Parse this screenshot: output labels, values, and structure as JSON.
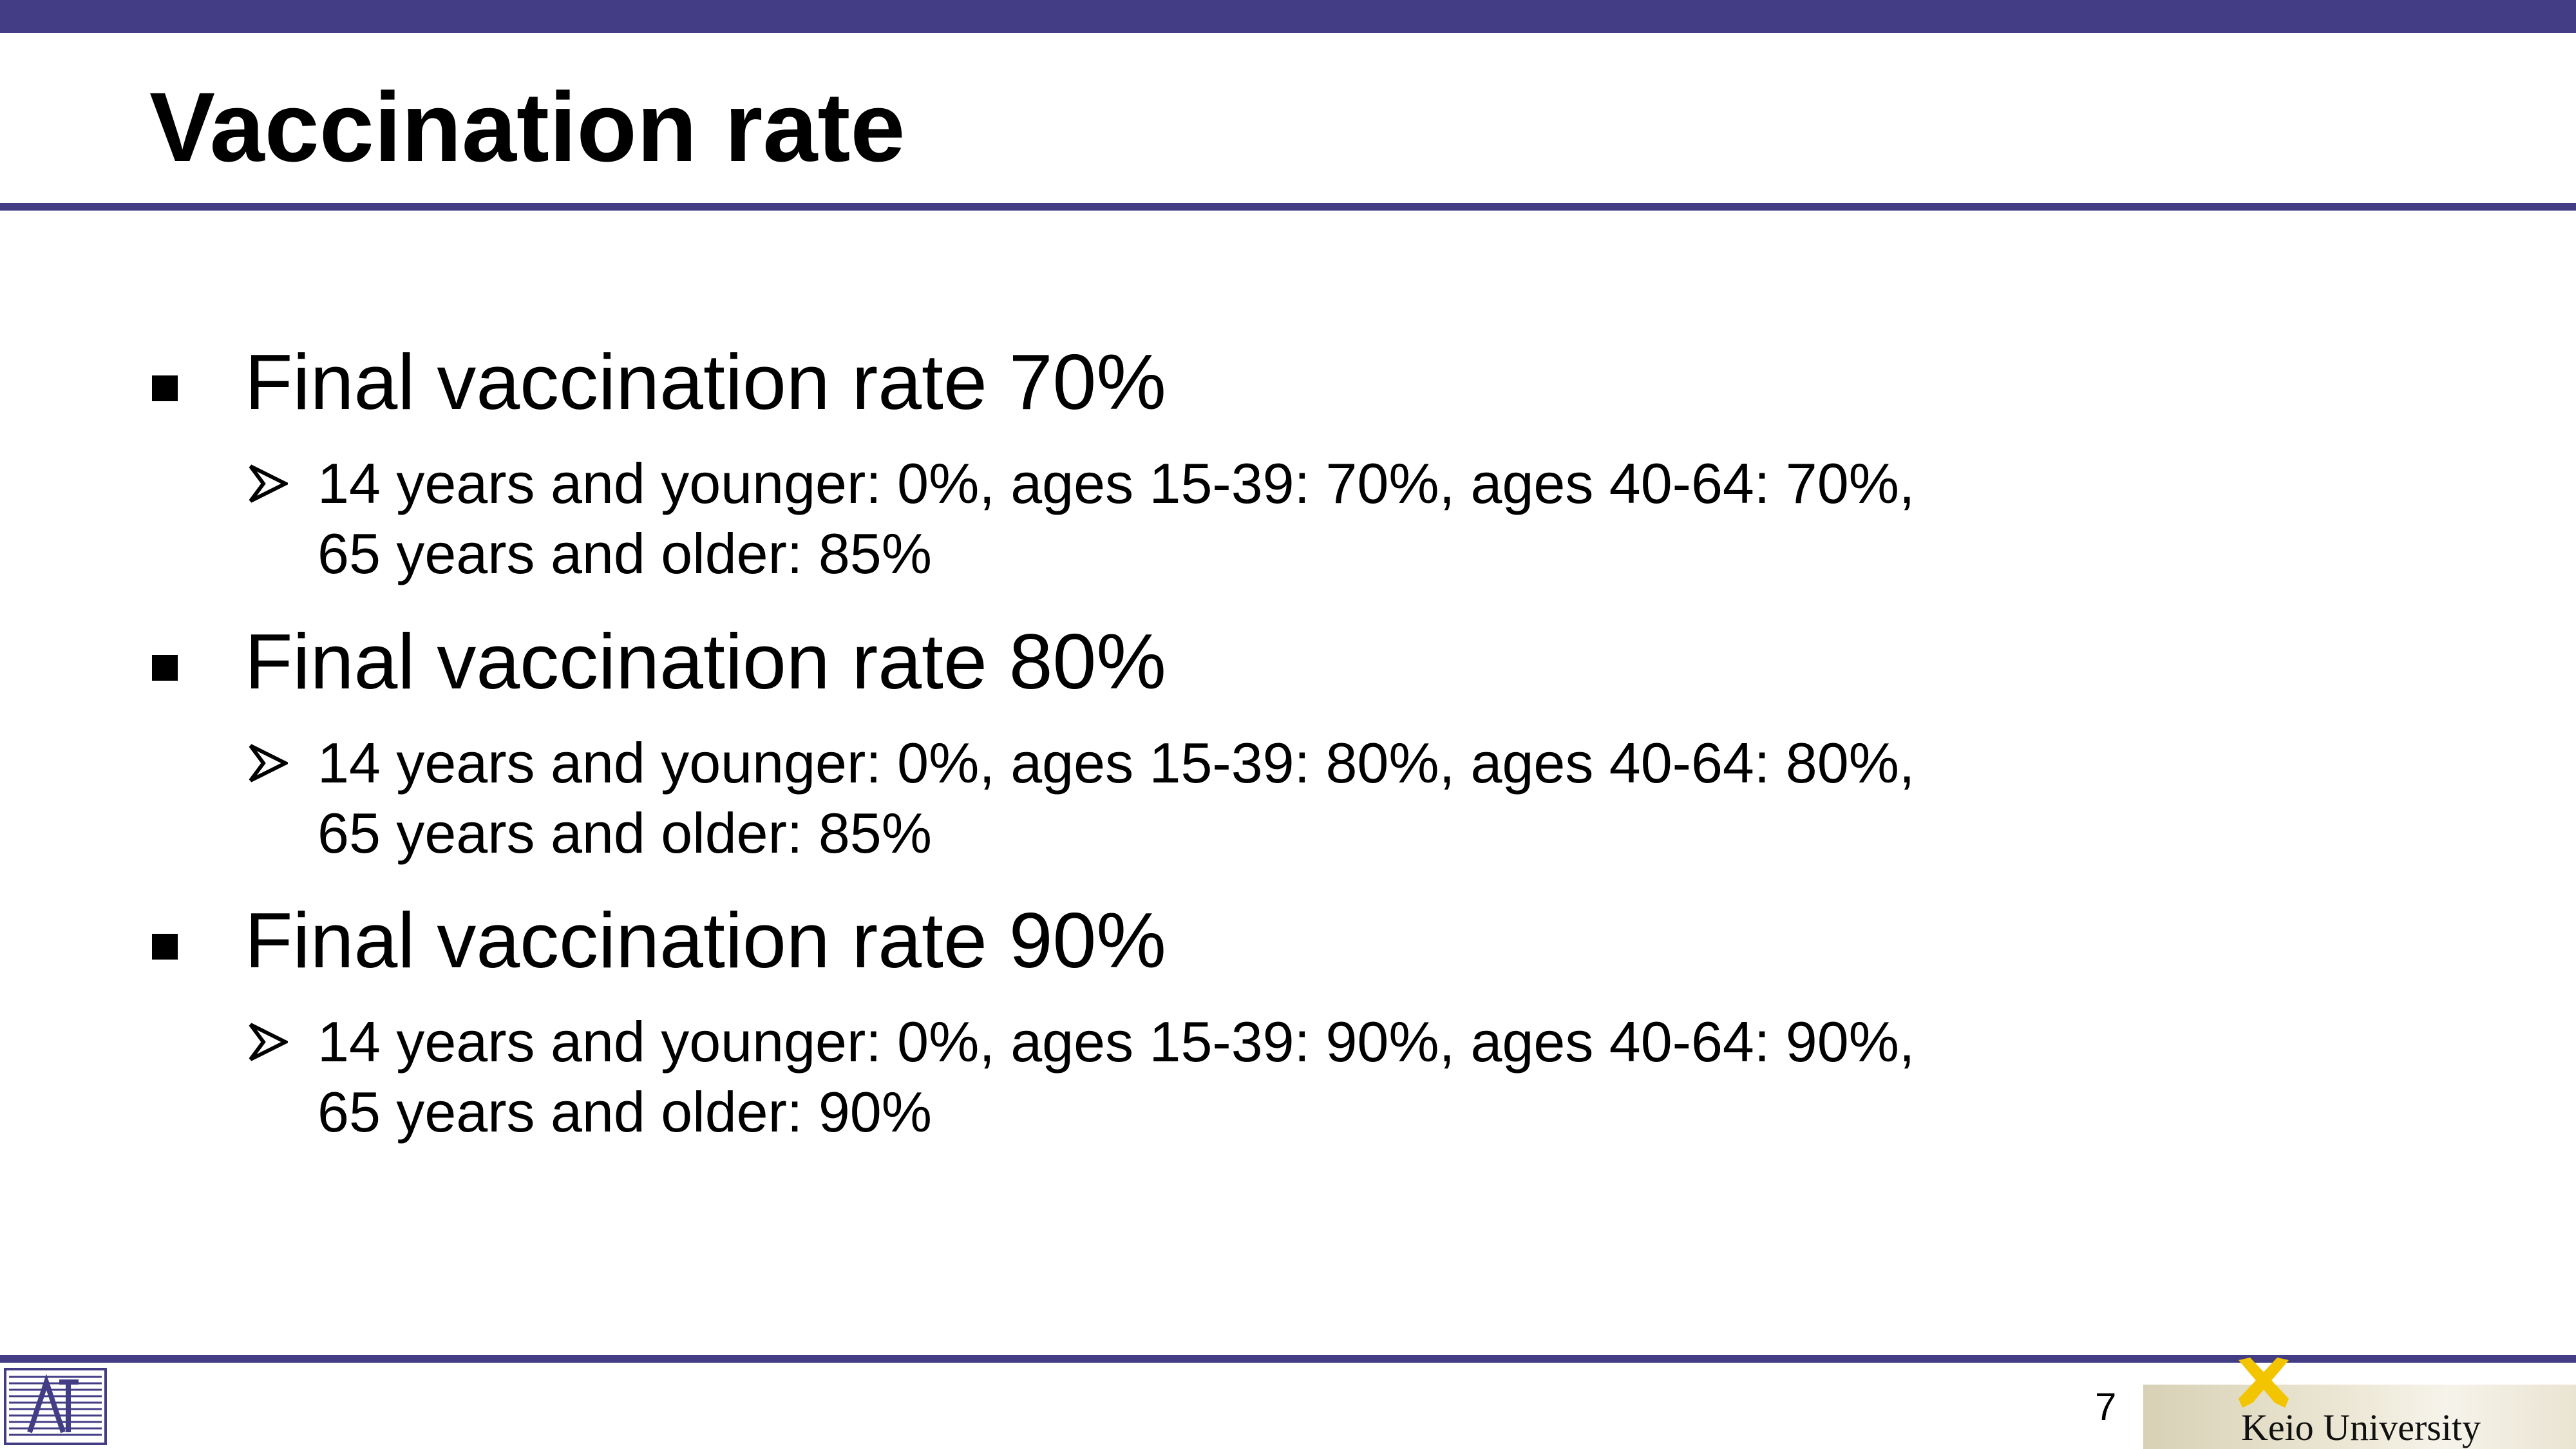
{
  "slide": {
    "title": "Vaccination rate",
    "page_number": "7",
    "university": "Keio University"
  },
  "bullets": [
    {
      "text": "Final vaccination rate 70%",
      "sub": [
        "14 years and younger: 0%, ages 15-39: 70%, ages 40-64: 70%,",
        "65 years and older: 85%"
      ]
    },
    {
      "text": "Final vaccination rate 80%",
      "sub": [
        "14 years and younger: 0%, ages 15-39: 80%, ages 40-64: 80%,",
        "65 years and older: 85%"
      ]
    },
    {
      "text": "Final vaccination rate 90%",
      "sub": [
        "14 years and younger: 0%, ages 15-39: 90%, ages 40-64: 90%,",
        "65 years and older: 90%"
      ]
    }
  ],
  "colors": {
    "accent": "#433d86",
    "keio_gold": "#f2c500"
  },
  "icons": [
    "square-bullet-icon",
    "arrow-bullet-icon",
    "lab-logo-icon",
    "keio-pen-logo-icon"
  ]
}
